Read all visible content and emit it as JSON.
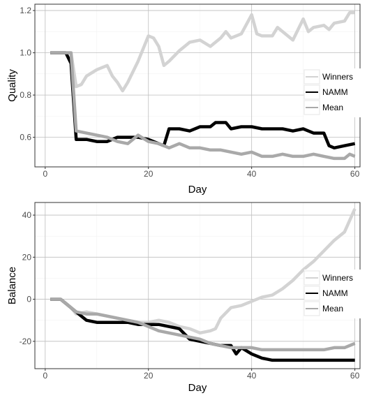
{
  "chart_data": [
    {
      "type": "line",
      "xlabel": "Day",
      "ylabel": "Quality",
      "xlim": [
        -2,
        61
      ],
      "ylim": [
        0.46,
        1.23
      ],
      "x_ticks": [
        0,
        20,
        40,
        60
      ],
      "y_ticks": [
        0.6,
        0.8,
        1.0,
        1.2
      ],
      "y_tick_labels": [
        "0.6",
        "0.8",
        "1.0",
        "1.2"
      ],
      "grid": true,
      "legend_position": "right",
      "series": [
        {
          "name": "Winners",
          "color": "#d3d3d3",
          "x": [
            1,
            5,
            6,
            7,
            8,
            10,
            12,
            13,
            14,
            15,
            16,
            18,
            20,
            21,
            22,
            23,
            24,
            26,
            28,
            30,
            32,
            34,
            35,
            36,
            38,
            40,
            41,
            42,
            44,
            45,
            46,
            48,
            50,
            51,
            52,
            54,
            55,
            56,
            58,
            59,
            60
          ],
          "y": [
            1.0,
            1.0,
            0.84,
            0.85,
            0.89,
            0.92,
            0.94,
            0.89,
            0.86,
            0.82,
            0.86,
            0.96,
            1.08,
            1.07,
            1.03,
            0.94,
            0.96,
            1.01,
            1.05,
            1.06,
            1.03,
            1.07,
            1.1,
            1.07,
            1.09,
            1.18,
            1.09,
            1.08,
            1.08,
            1.12,
            1.1,
            1.06,
            1.16,
            1.1,
            1.12,
            1.13,
            1.11,
            1.14,
            1.15,
            1.19,
            1.19
          ]
        },
        {
          "name": "NAMM",
          "color": "#000000",
          "x": [
            1,
            4,
            5,
            6,
            8,
            10,
            12,
            14,
            16,
            18,
            20,
            22,
            23,
            24,
            26,
            28,
            30,
            32,
            33,
            35,
            36,
            38,
            40,
            42,
            44,
            46,
            48,
            50,
            51,
            52,
            54,
            55,
            56,
            58,
            60
          ],
          "y": [
            1.0,
            1.0,
            0.95,
            0.59,
            0.59,
            0.58,
            0.58,
            0.6,
            0.6,
            0.6,
            0.59,
            0.57,
            0.56,
            0.64,
            0.64,
            0.63,
            0.65,
            0.65,
            0.67,
            0.67,
            0.64,
            0.65,
            0.65,
            0.64,
            0.64,
            0.64,
            0.63,
            0.64,
            0.63,
            0.62,
            0.62,
            0.56,
            0.55,
            0.56,
            0.57
          ]
        },
        {
          "name": "Mean",
          "color": "#a9a9a9",
          "x": [
            1,
            5,
            6,
            8,
            10,
            12,
            14,
            16,
            18,
            20,
            22,
            24,
            26,
            28,
            30,
            32,
            34,
            36,
            38,
            40,
            42,
            44,
            46,
            48,
            50,
            52,
            54,
            56,
            58,
            59,
            60
          ],
          "y": [
            1.0,
            1.0,
            0.63,
            0.62,
            0.61,
            0.6,
            0.58,
            0.57,
            0.61,
            0.58,
            0.57,
            0.55,
            0.57,
            0.55,
            0.55,
            0.54,
            0.54,
            0.53,
            0.52,
            0.53,
            0.51,
            0.51,
            0.52,
            0.51,
            0.51,
            0.52,
            0.51,
            0.5,
            0.5,
            0.52,
            0.51
          ]
        }
      ]
    },
    {
      "type": "line",
      "xlabel": "Day",
      "ylabel": "Balance",
      "xlim": [
        -2,
        61
      ],
      "ylim": [
        -33,
        46
      ],
      "x_ticks": [
        0,
        20,
        40,
        60
      ],
      "y_ticks": [
        -20,
        0,
        20,
        40
      ],
      "y_tick_labels": [
        "-20",
        "0",
        "20",
        "40"
      ],
      "grid": true,
      "legend_position": "right",
      "series": [
        {
          "name": "Winners",
          "color": "#d3d3d3",
          "x": [
            1,
            3,
            5,
            6,
            8,
            10,
            12,
            14,
            16,
            18,
            20,
            22,
            24,
            26,
            28,
            30,
            32,
            33,
            34,
            36,
            38,
            40,
            42,
            44,
            46,
            48,
            50,
            52,
            54,
            56,
            58,
            60
          ],
          "y": [
            0,
            0,
            -4,
            -7,
            -6,
            -7,
            -8,
            -9,
            -10,
            -11,
            -11,
            -10,
            -11,
            -13,
            -14,
            -16,
            -15,
            -14,
            -9,
            -4,
            -3,
            -1,
            1,
            2,
            5,
            9,
            14,
            18,
            23,
            28,
            32,
            43
          ]
        },
        {
          "name": "NAMM",
          "color": "#000000",
          "x": [
            1,
            3,
            4,
            6,
            8,
            10,
            12,
            14,
            16,
            18,
            20,
            22,
            24,
            26,
            28,
            30,
            32,
            34,
            36,
            37,
            38,
            40,
            42,
            44,
            46,
            48,
            50,
            52,
            54,
            56,
            58,
            60
          ],
          "y": [
            0,
            0,
            -2,
            -6,
            -10,
            -11,
            -11,
            -11,
            -11,
            -12,
            -12,
            -12,
            -13,
            -14,
            -19,
            -20,
            -21,
            -22,
            -22,
            -26,
            -23,
            -26,
            -28,
            -29,
            -29,
            -29,
            -29,
            -29,
            -29,
            -29,
            -29,
            -29
          ]
        },
        {
          "name": "Mean",
          "color": "#a9a9a9",
          "x": [
            1,
            3,
            5,
            6,
            8,
            10,
            12,
            14,
            16,
            18,
            20,
            22,
            24,
            26,
            28,
            30,
            32,
            34,
            36,
            38,
            40,
            42,
            44,
            46,
            48,
            50,
            52,
            54,
            56,
            58,
            60
          ],
          "y": [
            0,
            0,
            -4,
            -6,
            -7,
            -7,
            -8,
            -9,
            -10,
            -11,
            -13,
            -15,
            -16,
            -17,
            -18,
            -19,
            -21,
            -22,
            -23,
            -23,
            -23,
            -24,
            -24,
            -24,
            -24,
            -24,
            -24,
            -24,
            -23,
            -23,
            -21
          ]
        }
      ]
    }
  ]
}
